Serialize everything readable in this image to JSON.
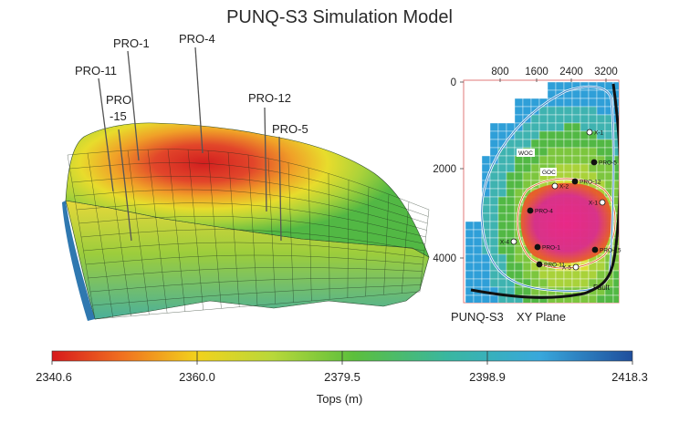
{
  "title": "PUNQ-S3 Simulation Model",
  "wells_3d": [
    "PRO-1",
    "PRO-4",
    "PRO-11",
    "PRO-15",
    "PRO-12",
    "PRO-5"
  ],
  "well_15_lines": [
    "PRO",
    "-15"
  ],
  "xy_plane": {
    "x_ticks": [
      "800",
      "1600",
      "2400",
      "3200"
    ],
    "y_ticks": [
      "0",
      "2000",
      "4000"
    ],
    "caption_left": "PUNQ-S3",
    "caption_right": "XY Plane",
    "contour_labels": [
      "WOC",
      "GOC"
    ],
    "fault_label": "Fault",
    "wells": [
      "X-1",
      "PRO-5",
      "PRO-12",
      "X-2",
      "PRO-4",
      "X-1",
      "PRO-1",
      "X-4",
      "PRO-11",
      "X-5",
      "PRO-15"
    ]
  },
  "colorbar": {
    "ticks": [
      "2340.6",
      "2360.0",
      "2379.5",
      "2398.9",
      "2418.3"
    ],
    "label": "Tops (m)",
    "colors": [
      "#d7191c",
      "#f07020",
      "#f2d21c",
      "#b8d83a",
      "#5cbf3c",
      "#39b7a0",
      "#38a8dc",
      "#1f4e9c"
    ]
  }
}
